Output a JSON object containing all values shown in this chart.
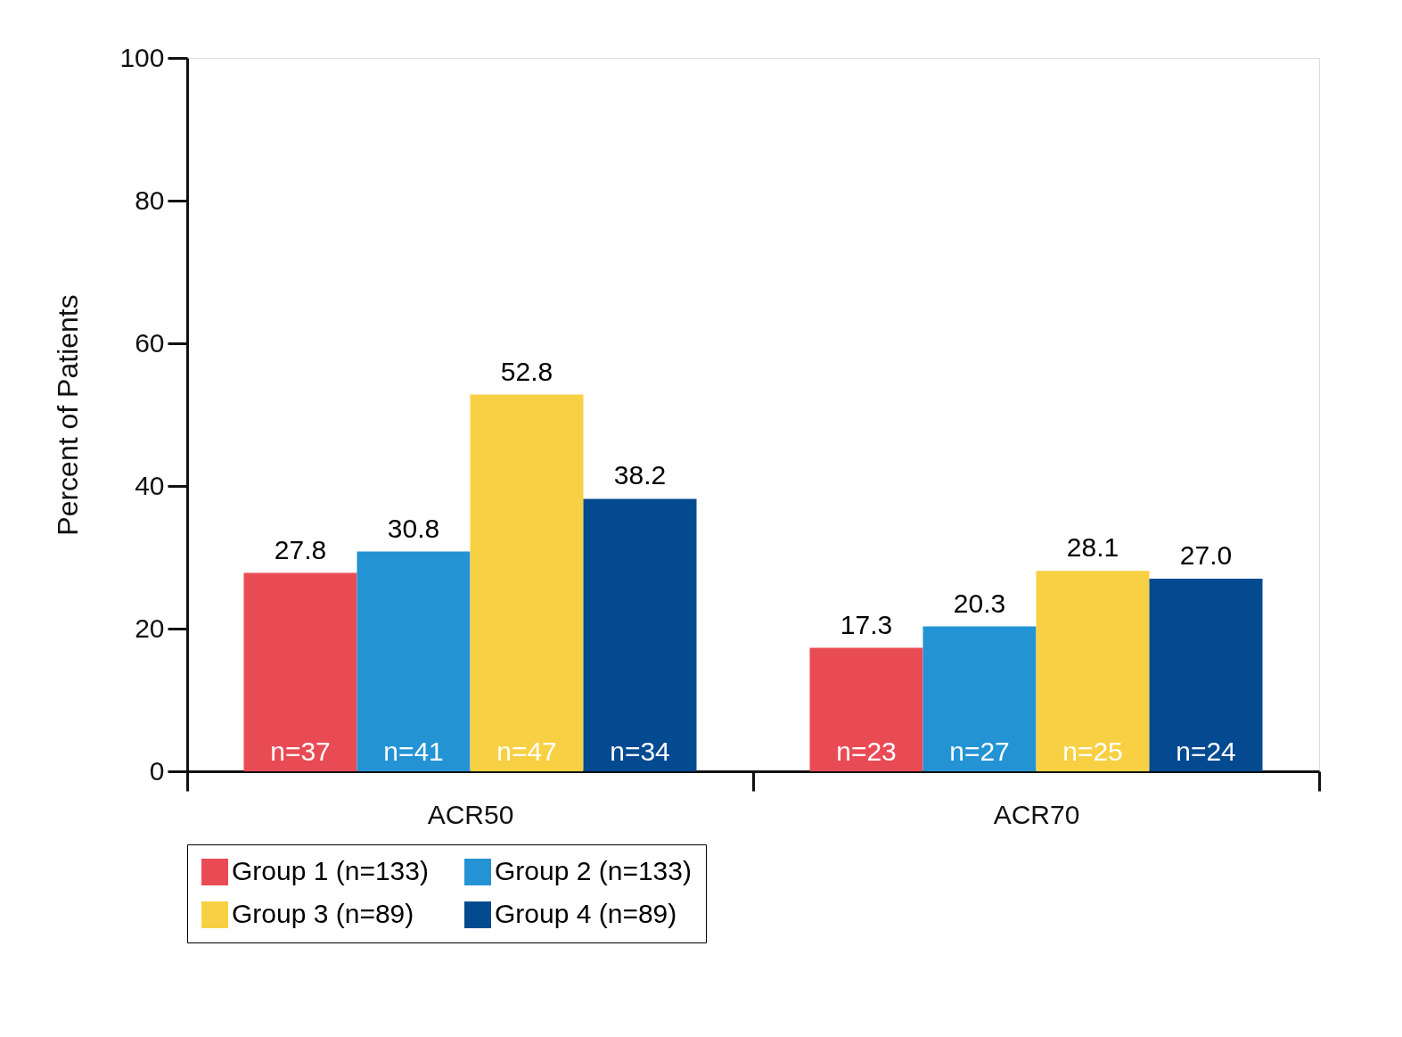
{
  "chart_data": {
    "type": "bar",
    "ylabel": "Percent of Patients",
    "categories": [
      "ACR50",
      "ACR70"
    ],
    "series": [
      {
        "name": "Group 1 (n=133)",
        "color": "#e94b55",
        "values": [
          27.8,
          17.3
        ],
        "value_labels": [
          "27.8",
          "17.3"
        ]
      },
      {
        "name": "Group 2 (n=133)",
        "color": "#2393d3",
        "values": [
          30.8,
          20.3
        ],
        "value_labels": [
          "30.8",
          "20.3"
        ]
      },
      {
        "name": "Group 3 (n=89)",
        "color": "#f8d043",
        "values": [
          52.8,
          28.1
        ],
        "value_labels": [
          "52.8",
          "28.1"
        ]
      },
      {
        "name": "Group 4 (n=89)",
        "color": "#034a91",
        "values": [
          38.2,
          27.0
        ],
        "value_labels": [
          "38.2",
          "27.0"
        ]
      }
    ],
    "ylim": [
      0,
      100
    ],
    "yticks": [
      0,
      20,
      40,
      60,
      80,
      100
    ],
    "grid": false,
    "legend": "bottom",
    "annotations": [
      "n=37",
      "n=41",
      "n=47",
      "n=34",
      "n=23",
      "n=27",
      "n=25",
      "n=24"
    ]
  }
}
